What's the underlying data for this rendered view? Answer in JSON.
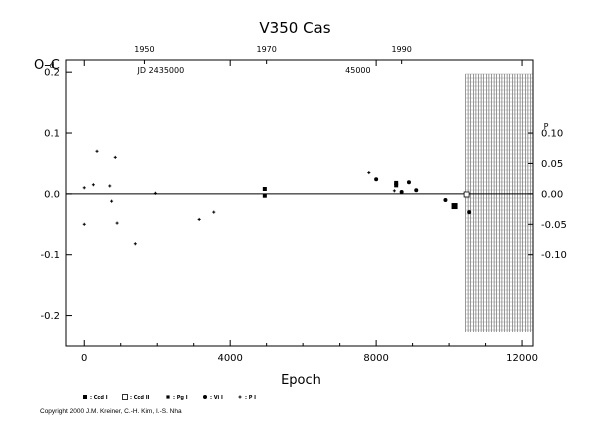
{
  "chart_data": {
    "type": "scatter",
    "title": "V350  Cas",
    "ylabel": "O–C",
    "ylabel_unit": "d",
    "xlabel": "Epoch",
    "xlim": [
      -500,
      12300
    ],
    "ylim": [
      -0.25,
      0.22
    ],
    "x_ticks": [
      0,
      4000,
      8000,
      12000
    ],
    "x_tick_labels": [
      "0",
      "4000",
      "8000",
      "12000"
    ],
    "y_ticks": [
      -0.2,
      -0.1,
      0.0,
      0.1,
      0.2
    ],
    "y_tick_labels": [
      "-0.2",
      "-0.1",
      "0.0",
      "0.1",
      "0.2"
    ],
    "y_unit_first_label": "0.2",
    "top_axis": {
      "year_labels": [
        {
          "label": "1950",
          "epoch": 1650
        },
        {
          "label": "1970",
          "epoch": 5000
        },
        {
          "label": "1990",
          "epoch": 8700
        }
      ],
      "jd_labels": [
        {
          "label": "JD 2435000",
          "epoch": 2100
        },
        {
          "label": "45000",
          "epoch": 7500
        }
      ]
    },
    "right_axis": {
      "ticks": [
        -0.1,
        -0.05,
        0.0,
        0.05,
        0.1
      ],
      "tick_labels": [
        "-0.10",
        "-0.05",
        "0.00",
        "0.05",
        "0.10"
      ],
      "unit_first_label": "0.10",
      "unit": "P",
      "scale_factor": 1.0
    },
    "shaded_region": {
      "x_from": 10450,
      "x_to": 12300
    },
    "series": [
      {
        "marker": "filled-square-large",
        "points": [
          [
            10150,
            -0.02
          ]
        ]
      },
      {
        "marker": "open-square",
        "points": [
          [
            10480,
            -0.001
          ]
        ]
      },
      {
        "marker": "filled-square",
        "points": [
          [
            4950,
            0.008
          ],
          [
            4950,
            -0.003
          ],
          [
            8550,
            0.018
          ],
          [
            8550,
            0.014
          ]
        ]
      },
      {
        "marker": "filled-circle",
        "points": [
          [
            8000,
            0.024
          ],
          [
            8700,
            0.003
          ],
          [
            8900,
            0.019
          ],
          [
            9100,
            0.006
          ],
          [
            9900,
            -0.01
          ],
          [
            10550,
            -0.03
          ]
        ]
      },
      {
        "marker": "plus",
        "points": [
          [
            0,
            0.01
          ],
          [
            0,
            -0.05
          ],
          [
            250,
            0.015
          ],
          [
            350,
            0.07
          ],
          [
            700,
            0.013
          ],
          [
            750,
            -0.012
          ],
          [
            850,
            0.06
          ],
          [
            900,
            -0.048
          ],
          [
            1400,
            -0.082
          ],
          [
            1950,
            0.001
          ],
          [
            3150,
            -0.042
          ],
          [
            3550,
            -0.03
          ],
          [
            7800,
            0.035
          ],
          [
            8500,
            0.005
          ]
        ]
      }
    ],
    "legend": {
      "placement": "bottom-left",
      "entries": [
        {
          "marker": "filled-square",
          "label": ": Ccd I"
        },
        {
          "marker": "open-square",
          "label": ": Ccd II"
        },
        {
          "marker": "filled-square-small",
          "label": ": Pg I"
        },
        {
          "marker": "filled-circle",
          "label": ": Vi I"
        },
        {
          "marker": "plus",
          "label": ": P I"
        }
      ]
    },
    "copyright": "Copyright 2000 J.M. Kreiner, C.-H. Kim, I.-S. Nha"
  }
}
